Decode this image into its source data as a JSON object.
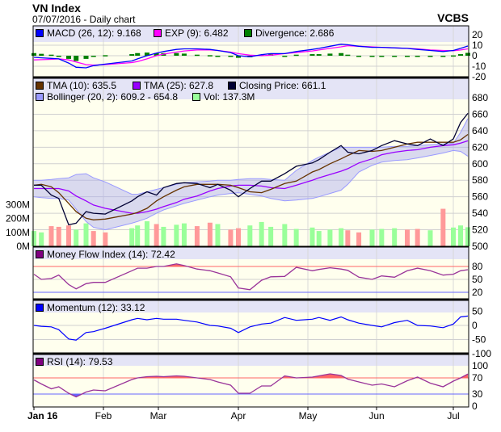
{
  "header": {
    "title": "VN Index",
    "subtitle": "07/07/2016 - Daily chart",
    "brand": "VCBS"
  },
  "chart_data": {
    "type": "line",
    "x_tick_labels": [
      {
        "date": "2016-01-04",
        "label": "Jan 16",
        "bold": true
      },
      {
        "date": "2016-02-01",
        "label": "Feb"
      },
      {
        "date": "2016-03-01",
        "label": "Mar"
      },
      {
        "date": "2016-04-01",
        "label": "Apr"
      },
      {
        "date": "2016-05-01",
        "label": "May"
      },
      {
        "date": "2016-06-01",
        "label": "Jun"
      },
      {
        "date": "2016-07-01",
        "label": "Jul"
      }
    ],
    "dates": [
      "2016-01-04",
      "2016-01-07",
      "2016-01-11",
      "2016-01-14",
      "2016-01-18",
      "2016-01-21",
      "2016-01-25",
      "2016-01-28",
      "2016-02-02",
      "2016-02-16",
      "2016-02-19",
      "2016-02-24",
      "2016-02-29",
      "2016-03-03",
      "2016-03-08",
      "2016-03-11",
      "2016-03-16",
      "2016-03-21",
      "2016-03-24",
      "2016-03-29",
      "2016-04-01",
      "2016-04-06",
      "2016-04-11",
      "2016-04-15",
      "2016-04-21",
      "2016-04-26",
      "2016-05-03",
      "2016-05-06",
      "2016-05-11",
      "2016-05-16",
      "2016-05-19",
      "2016-05-24",
      "2016-05-30",
      "2016-06-03",
      "2016-06-08",
      "2016-06-13",
      "2016-06-17",
      "2016-06-22",
      "2016-06-27",
      "2016-07-01",
      "2016-07-04",
      "2016-07-07"
    ],
    "panels": {
      "macd": {
        "legend": [
          {
            "label": "MACD (26, 12): 9.168",
            "color": "#0000ff"
          },
          {
            "label": "EXP (9): 6.482",
            "color": "#ff00ff"
          },
          {
            "label": "Divergence: 2.686",
            "color": "#008000"
          }
        ],
        "yticks": [
          20,
          10,
          0,
          -10,
          -20
        ],
        "macd": [
          -1.5,
          -2,
          -2.5,
          -3,
          -7,
          -11,
          -11.5,
          -9.5,
          -8,
          -5,
          -3,
          0,
          2.5,
          4,
          6,
          6.5,
          6.5,
          6,
          5,
          3,
          0,
          -1,
          1,
          2,
          2,
          4,
          6,
          7,
          9,
          11,
          10.5,
          9,
          8,
          8,
          7.5,
          7,
          6,
          5,
          4,
          5,
          7,
          9.2
        ],
        "exp": [
          -4,
          -3.8,
          -3.5,
          -3,
          -4,
          -6,
          -8.5,
          -9,
          -8.5,
          -6.5,
          -5.5,
          -3,
          0,
          1.5,
          3.5,
          4.5,
          5.5,
          5.5,
          5,
          3.5,
          2,
          0.5,
          0,
          0.5,
          2,
          3,
          4.5,
          5.5,
          7,
          8.5,
          9.5,
          9,
          8.5,
          8,
          7.5,
          7,
          6.5,
          5.5,
          5,
          4.7,
          5.5,
          6.5
        ],
        "divergence": [
          2.5,
          1.8,
          1,
          0,
          -3,
          -5,
          -3,
          -0.5,
          0.5,
          1.5,
          2.5,
          3,
          2.5,
          2.5,
          2.5,
          2,
          1,
          0.5,
          0,
          -0.5,
          -2,
          -1.5,
          1,
          1.5,
          0,
          1,
          1.5,
          1.5,
          2,
          2.5,
          1,
          0,
          -0.5,
          0,
          0,
          0,
          -0.5,
          -0.5,
          -1,
          0.3,
          1.5,
          2.7
        ]
      },
      "price": {
        "legend": [
          {
            "label": "TMA (10): 635.5",
            "color": "#663300"
          },
          {
            "label": "TMA (25): 627.8",
            "color": "#9900ff"
          },
          {
            "label": "Closing Price: 661.1",
            "color": "#000033"
          },
          {
            "label": "Bollinger (20, 2): 609.2 - 654.8",
            "color": "#9999ff"
          },
          {
            "label": "Vol: 137.3M",
            "color": "#99ff99"
          }
        ],
        "yticks": [
          680,
          660,
          640,
          620,
          600,
          580,
          560,
          540,
          520,
          500
        ],
        "volume_ticks": [
          {
            "value": 300,
            "label": "300M"
          },
          {
            "value": 200,
            "label": "200M"
          },
          {
            "value": 100,
            "label": "100M"
          },
          {
            "value": 0,
            "label": "0M"
          }
        ],
        "up_color": "#99ff99",
        "down_color": "#ff9999",
        "close": [
          574,
          574,
          562,
          558,
          526,
          528,
          542,
          540,
          539,
          555,
          560,
          566,
          562,
          571,
          576,
          577,
          576,
          571,
          575,
          568,
          560,
          570,
          579,
          579,
          588,
          597,
          601,
          605,
          614,
          622,
          614,
          612,
          616,
          622,
          628,
          624,
          622,
          630,
          622,
          630,
          650,
          661.1
        ],
        "tma10": [
          574,
          575,
          572,
          565,
          552,
          542,
          534,
          532,
          533,
          539,
          541,
          546,
          555,
          560,
          568,
          572,
          575,
          575,
          575,
          574,
          571,
          566,
          565,
          569,
          576,
          579,
          590,
          593,
          600,
          606,
          610,
          616,
          615,
          616,
          620,
          624,
          626,
          626,
          626,
          626,
          629,
          635.5
        ],
        "tma25": [
          570,
          570,
          570,
          570,
          567,
          561,
          555,
          550,
          546,
          540,
          540,
          542,
          545,
          548,
          553,
          557,
          561,
          567,
          570,
          573,
          574,
          574,
          573,
          571,
          570,
          574,
          580,
          583,
          587,
          591,
          594,
          601,
          606,
          611,
          614,
          616,
          617,
          620,
          622,
          623,
          625,
          627.8
        ],
        "bollinger_upper": [
          580,
          580,
          581,
          582,
          583,
          587,
          588,
          583,
          578,
          563,
          563,
          566,
          569,
          571,
          575,
          577,
          578,
          579,
          580,
          580,
          581,
          582,
          582,
          581,
          580,
          592,
          604,
          608,
          614,
          620,
          620,
          620,
          620,
          620,
          621,
          621,
          622,
          623,
          624,
          625,
          638,
          654.8
        ],
        "bollinger_lower": [
          560,
          559,
          558,
          558,
          556,
          545,
          530,
          523,
          520,
          528,
          530,
          534,
          540,
          544,
          549,
          552,
          556,
          560,
          562,
          564,
          565,
          563,
          561,
          558,
          555,
          556,
          558,
          560,
          564,
          568,
          575,
          590,
          598,
          602,
          604,
          605,
          607,
          610,
          613,
          616,
          615,
          609.2
        ],
        "volume_m": [
          110,
          100,
          145,
          140,
          150,
          120,
          165,
          110,
          100,
          130,
          150,
          180,
          160,
          140,
          155,
          165,
          145,
          170,
          160,
          120,
          130,
          150,
          175,
          140,
          160,
          125,
          135,
          110,
          120,
          130,
          115,
          100,
          120,
          125,
          130,
          120,
          125,
          115,
          270,
          135,
          150,
          137.3
        ]
      },
      "mfi": {
        "legend": [
          {
            "label": "Money Flow Index (14): 72.42",
            "color": "#800080"
          }
        ],
        "yticks": [
          {
            "value": 80,
            "color": "#ff6666"
          },
          {
            "value": 50,
            "color": "#000000"
          },
          {
            "value": 20,
            "color": "#6666ff"
          }
        ],
        "overbought": 80,
        "oversold": 20,
        "values": [
          62,
          50,
          52,
          60,
          38,
          28,
          40,
          43,
          43,
          70,
          76,
          76,
          80,
          80,
          86,
          82,
          74,
          70,
          65,
          56,
          30,
          26,
          48,
          56,
          57,
          78,
          70,
          73,
          77,
          74,
          71,
          55,
          50,
          58,
          55,
          70,
          76,
          70,
          60,
          62,
          70,
          72.42
        ]
      },
      "momentum": {
        "legend": [
          {
            "label": "Momentum (12): 33.12",
            "color": "#0000ff"
          }
        ],
        "yticks": [
          50,
          0,
          -50,
          -100
        ],
        "values": [
          0,
          -3,
          -5,
          -15,
          -48,
          -52,
          -25,
          -22,
          -10,
          20,
          25,
          20,
          25,
          22,
          22,
          18,
          12,
          0,
          -2,
          -10,
          -25,
          -5,
          5,
          8,
          28,
          18,
          22,
          28,
          18,
          30,
          20,
          8,
          0,
          -5,
          10,
          18,
          0,
          -2,
          -8,
          5,
          30,
          33.12
        ]
      },
      "rsi": {
        "legend": [
          {
            "label": "RSI (14): 79.53",
            "color": "#800080"
          }
        ],
        "yticks": [
          {
            "value": 100,
            "color": "#000000"
          },
          {
            "value": 70,
            "color": "#ff6666"
          },
          {
            "value": 30,
            "color": "#6666ff"
          },
          {
            "value": 0,
            "color": "#000000"
          }
        ],
        "overbought": 70,
        "oversold": 30,
        "values": [
          65,
          55,
          43,
          48,
          32,
          23,
          35,
          40,
          38,
          66,
          70,
          73,
          74,
          73,
          75,
          74,
          70,
          66,
          60,
          52,
          32,
          32,
          50,
          50,
          75,
          70,
          72,
          75,
          80,
          76,
          67,
          60,
          52,
          55,
          48,
          63,
          72,
          57,
          48,
          62,
          70,
          79.53
        ]
      }
    }
  }
}
